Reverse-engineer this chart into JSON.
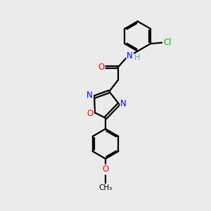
{
  "background_color": "#ebebeb",
  "bond_color": "#000000",
  "atom_colors": {
    "N": "#0000ff",
    "O": "#ff0000",
    "Cl": "#00bb00",
    "C": "#000000",
    "H": "#5f9ea0"
  },
  "font_size": 8.5,
  "bond_width": 1.6,
  "fig_bg": "#ebebeb"
}
